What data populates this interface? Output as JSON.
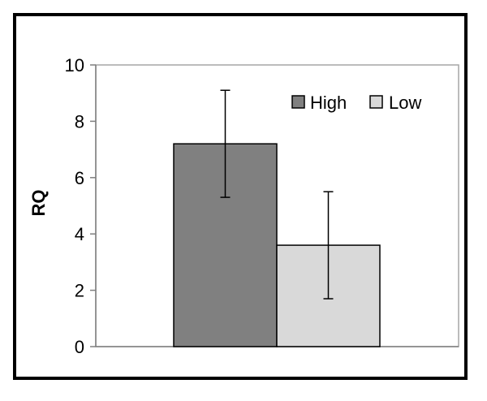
{
  "chart_data": {
    "type": "bar",
    "title": "",
    "xlabel": "",
    "ylabel": "RQ",
    "ylim": [
      0,
      10
    ],
    "yticks": [
      0,
      2,
      4,
      6,
      8,
      10
    ],
    "ytick_labels": [
      "0",
      "2",
      "4",
      "6",
      "8",
      "10"
    ],
    "categories": [
      ""
    ],
    "series": [
      {
        "name": "High",
        "values": [
          7.2
        ],
        "error": [
          1.9
        ],
        "color": "#808080"
      },
      {
        "name": "Low",
        "values": [
          3.6
        ],
        "error": [
          1.9
        ],
        "color": "#d9d9d9"
      }
    ],
    "legend": {
      "position": "top-right",
      "entries": [
        "High",
        "Low"
      ]
    },
    "grid": false
  }
}
